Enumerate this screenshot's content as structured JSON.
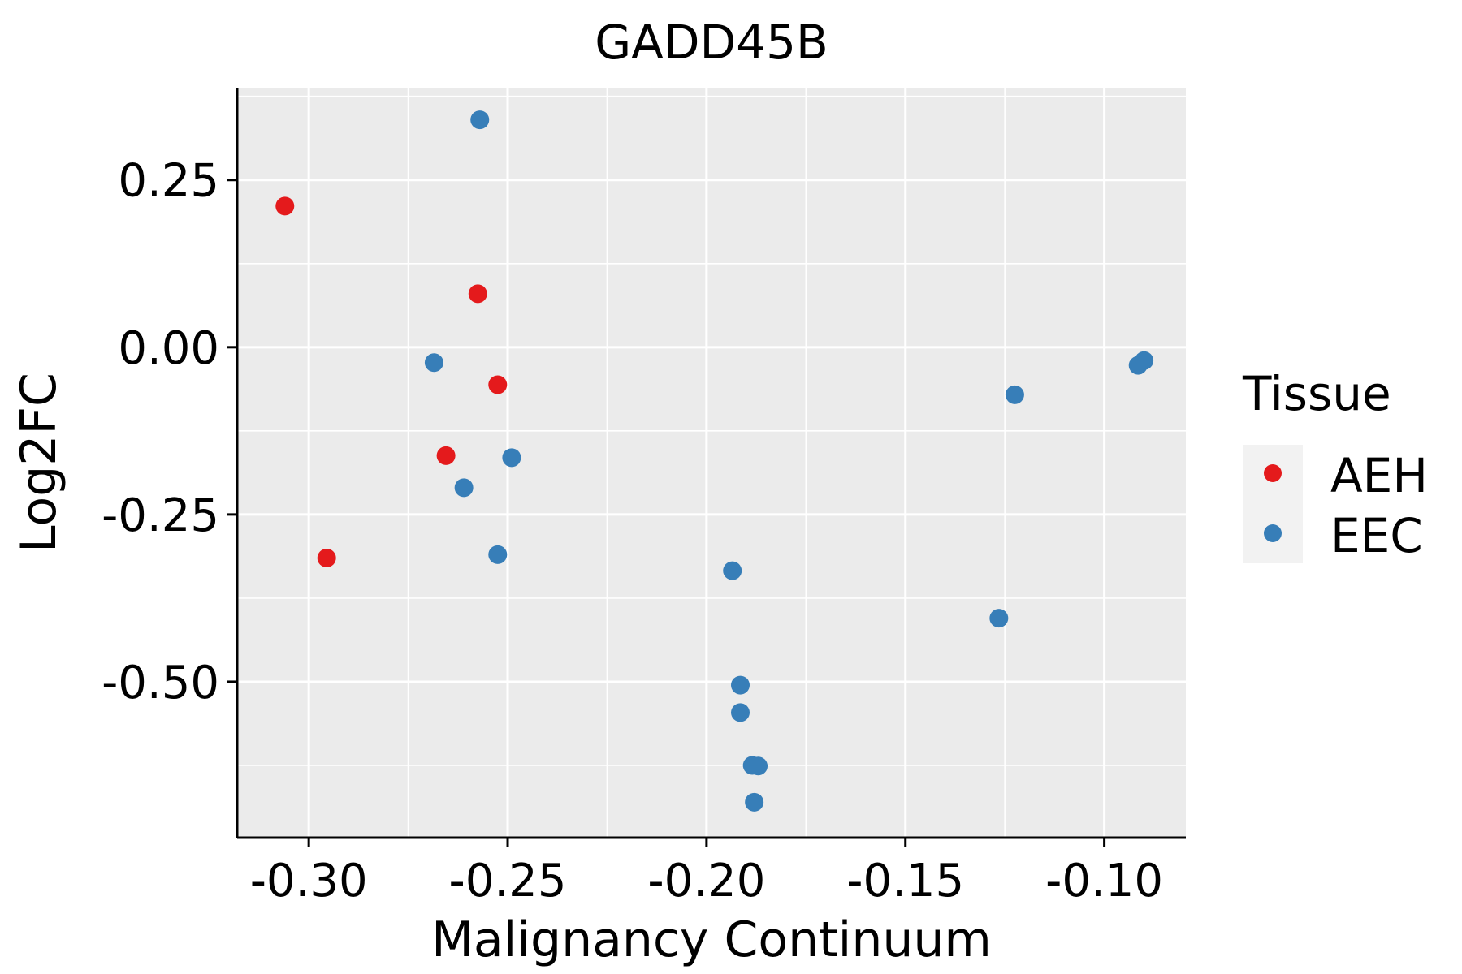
{
  "chart_data": {
    "type": "scatter",
    "title": "GADD45B",
    "xlabel": "Malignancy Continuum",
    "ylabel": "Log2FC",
    "xlim": [
      -0.318,
      -0.0795
    ],
    "ylim": [
      -0.733,
      0.388
    ],
    "x_ticks": [
      -0.3,
      -0.25,
      -0.2,
      -0.15,
      -0.1
    ],
    "x_tick_labels": [
      "-0.30",
      "-0.25",
      "-0.20",
      "-0.15",
      "-0.10"
    ],
    "y_ticks": [
      0.25,
      0.0,
      -0.25,
      -0.5
    ],
    "y_tick_labels": [
      "0.25",
      "0.00",
      "-0.25",
      "-0.50"
    ],
    "grid": true,
    "legend": {
      "title": "Tissue",
      "position": "right",
      "entries": [
        "AEH",
        "EEC"
      ]
    },
    "series": [
      {
        "name": "AEH",
        "color": "#e41a1c",
        "points": [
          {
            "x": -0.306,
            "y": 0.211
          },
          {
            "x": -0.2955,
            "y": -0.315
          },
          {
            "x": -0.2575,
            "y": 0.08
          },
          {
            "x": -0.2525,
            "y": -0.056
          },
          {
            "x": -0.2655,
            "y": -0.162
          }
        ]
      },
      {
        "name": "EEC",
        "color": "#377eb8",
        "points": [
          {
            "x": -0.257,
            "y": 0.34
          },
          {
            "x": -0.2685,
            "y": -0.023
          },
          {
            "x": -0.249,
            "y": -0.165
          },
          {
            "x": -0.261,
            "y": -0.21
          },
          {
            "x": -0.2525,
            "y": -0.31
          },
          {
            "x": -0.1935,
            "y": -0.334
          },
          {
            "x": -0.1915,
            "y": -0.505
          },
          {
            "x": -0.1915,
            "y": -0.546
          },
          {
            "x": -0.1885,
            "y": -0.625
          },
          {
            "x": -0.187,
            "y": -0.626
          },
          {
            "x": -0.188,
            "y": -0.68
          },
          {
            "x": -0.1265,
            "y": -0.405
          },
          {
            "x": -0.1225,
            "y": -0.071
          },
          {
            "x": -0.0915,
            "y": -0.027
          },
          {
            "x": -0.09,
            "y": -0.02
          }
        ]
      }
    ]
  }
}
